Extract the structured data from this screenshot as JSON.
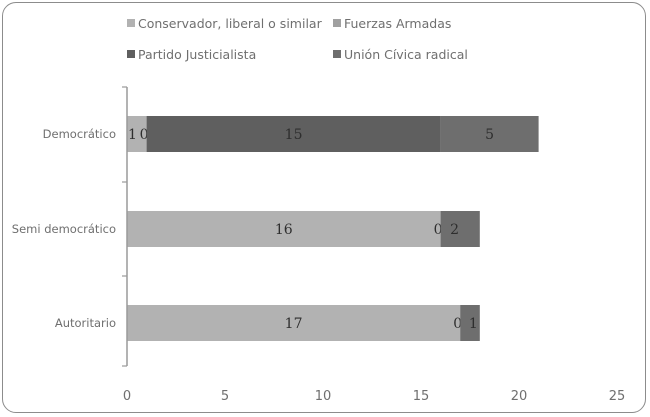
{
  "chart_data": {
    "type": "bar",
    "orientation": "horizontal",
    "stacked": true,
    "categories": [
      "Democrático",
      "Semi democrático",
      "Autoritario"
    ],
    "series": [
      {
        "name": "Conservador, liberal o similar",
        "color": "#b2b2b2",
        "values": [
          1,
          16,
          17
        ],
        "labels": [
          "1",
          "16",
          "17"
        ]
      },
      {
        "name": "Fuerzas Armadas",
        "color": "#a0a0a0",
        "values": [
          0,
          0,
          0
        ],
        "labels": [
          "0",
          "0",
          "0"
        ]
      },
      {
        "name": "Partido Justicialista",
        "color": "#5f5f5f",
        "values": [
          15,
          0,
          0
        ],
        "labels": [
          "15",
          "",
          ""
        ]
      },
      {
        "name": "Unión Cívica radical",
        "color": "#6e6e6e",
        "values": [
          5,
          2,
          1
        ],
        "labels": [
          "5",
          "2",
          "1"
        ]
      }
    ],
    "xlim": [
      0,
      25
    ],
    "xticks": [
      "0",
      "5",
      "10",
      "15",
      "20",
      "25"
    ],
    "legend_position": "top",
    "grid": false
  }
}
